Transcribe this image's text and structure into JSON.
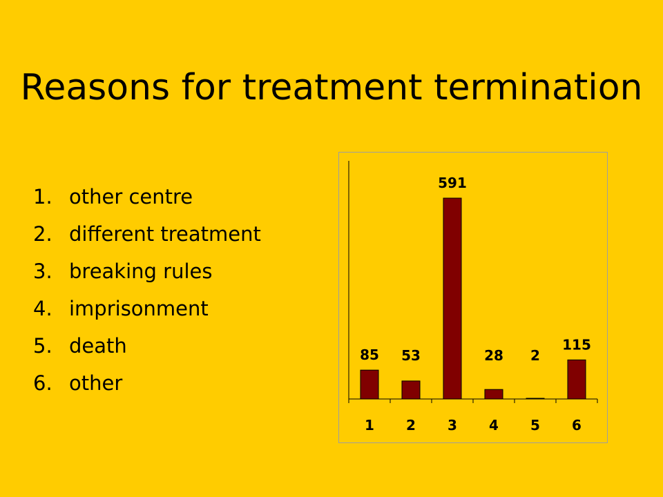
{
  "slide": {
    "title": "Reasons for treatment termination"
  },
  "reasons": [
    {
      "number": "1.",
      "label": "other centre"
    },
    {
      "number": "2.",
      "label": "different treatment"
    },
    {
      "number": "3.",
      "label": "breaking rules"
    },
    {
      "number": "4.",
      "label": "imprisonment"
    },
    {
      "number": "5.",
      "label": "death"
    },
    {
      "number": "6.",
      "label": "other"
    }
  ],
  "colors": {
    "background": "#FFCC00",
    "bar": "#800000"
  },
  "chart_data": {
    "type": "bar",
    "categories": [
      "1",
      "2",
      "3",
      "4",
      "5",
      "6"
    ],
    "values": [
      85,
      53,
      591,
      28,
      2,
      115
    ],
    "data_labels": [
      "85",
      "53",
      "591",
      "28",
      "2",
      "115"
    ],
    "title": "",
    "xlabel": "",
    "ylabel": "",
    "ylim": [
      0,
      591
    ],
    "grid": false,
    "legend": "none"
  }
}
